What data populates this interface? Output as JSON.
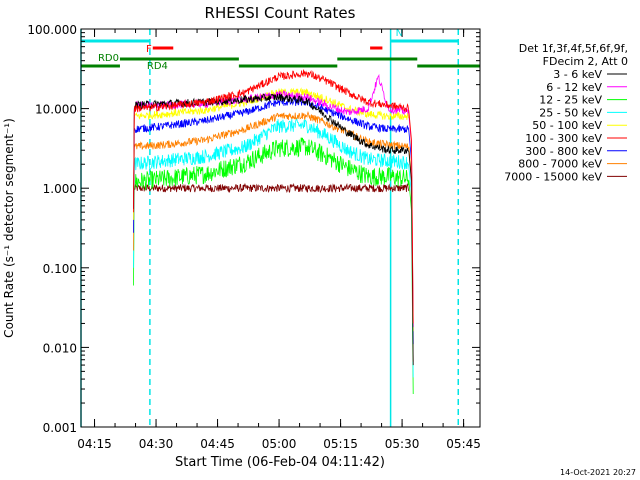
{
  "chart_data": {
    "type": "line",
    "title": "RHESSI Count Rates",
    "xlabel": "Start Time (06-Feb-04 04:11:42)",
    "ylabel": "Count Rate (s⁻¹ detector segment⁻¹)",
    "yscale": "log",
    "ylim": [
      0.001,
      100
    ],
    "xlim_minutes_after_0411_42": [
      0,
      97.3
    ],
    "x_ticks": [
      {
        "label": "04:15",
        "min": 3.3
      },
      {
        "label": "04:30",
        "min": 18.3
      },
      {
        "label": "04:45",
        "min": 33.3
      },
      {
        "label": "05:00",
        "min": 48.3
      },
      {
        "label": "05:15",
        "min": 63.3
      },
      {
        "label": "05:30",
        "min": 78.3
      },
      {
        "label": "05:45",
        "min": 93.3
      }
    ],
    "y_ticks": [
      {
        "label": "100.000",
        "v": 100
      },
      {
        "label": "10.000",
        "v": 10
      },
      {
        "label": "1.000",
        "v": 1
      },
      {
        "label": "0.100",
        "v": 0.1
      },
      {
        "label": "0.010",
        "v": 0.01
      },
      {
        "label": "0.001",
        "v": 0.001
      }
    ],
    "legend": {
      "header": [
        "Det 1f,3f,4f,5f,6f,9f,",
        "FDecim 2, Att 0"
      ],
      "placement": "right"
    },
    "series": [
      {
        "name": "3 - 6 keV",
        "color": "#000000",
        "x_min": [
          13,
          20,
          30,
          40,
          48,
          55,
          60,
          65,
          70,
          75,
          80
        ],
        "values": [
          11,
          11.5,
          12,
          13,
          14,
          12.5,
          8,
          5,
          3.5,
          3,
          3
        ]
      },
      {
        "name": "6 - 12 keV",
        "color": "#ff00ff",
        "x_min": [
          13,
          20,
          30,
          40,
          48,
          55,
          60,
          65,
          70,
          72.5,
          75,
          80
        ],
        "values": [
          11,
          11,
          11.5,
          13,
          15,
          14,
          11,
          9,
          10,
          25,
          10,
          9
        ]
      },
      {
        "name": "12 - 25 keV",
        "color": "#00ff00",
        "x_min": [
          13,
          20,
          30,
          40,
          48,
          55,
          60,
          65,
          70,
          75,
          80
        ],
        "values": [
          1.2,
          1.3,
          1.5,
          2.1,
          3.2,
          3.3,
          2.5,
          1.8,
          1.4,
          1.4,
          1.3
        ]
      },
      {
        "name": "25 - 50 keV",
        "color": "#00ffff",
        "x_min": [
          13,
          20,
          30,
          40,
          48,
          55,
          60,
          65,
          70,
          75,
          80
        ],
        "values": [
          2,
          2.2,
          2.5,
          3.3,
          6,
          6.2,
          4.5,
          3,
          2.3,
          2.2,
          2.1
        ]
      },
      {
        "name": "50 - 100 keV",
        "color": "#ffff00",
        "x_min": [
          13,
          20,
          30,
          40,
          48,
          55,
          60,
          65,
          70,
          75,
          80
        ],
        "values": [
          8,
          8.5,
          9.5,
          12,
          16,
          16,
          13,
          10,
          8.5,
          8,
          8
        ]
      },
      {
        "name": "100 - 300 keV",
        "color": "#ff0000",
        "x_min": [
          13,
          20,
          30,
          40,
          48,
          55,
          60,
          65,
          70,
          75,
          80
        ],
        "values": [
          10,
          10.5,
          12,
          16,
          25,
          28,
          22,
          16,
          12,
          11,
          10
        ]
      },
      {
        "name": "300 - 800 keV",
        "color": "#0000ff",
        "x_min": [
          13,
          20,
          30,
          40,
          48,
          55,
          60,
          65,
          70,
          75,
          80
        ],
        "values": [
          5.5,
          6,
          7,
          9,
          12,
          12,
          9.5,
          7.5,
          6,
          5.5,
          5.5
        ]
      },
      {
        "name": "800 - 7000 keV",
        "color": "#ff8000",
        "x_min": [
          13,
          20,
          30,
          40,
          48,
          55,
          60,
          65,
          70,
          75,
          80
        ],
        "values": [
          3.3,
          3.5,
          4,
          5.5,
          8,
          8.2,
          6.5,
          5,
          3.8,
          3.5,
          3.3
        ]
      },
      {
        "name": "7000 - 15000 keV",
        "color": "#800000",
        "x_min": [
          13,
          80
        ],
        "values": [
          1,
          1
        ]
      }
    ],
    "attenuator_bars": [
      {
        "label": "",
        "color": "#00e6e6",
        "x_min": [
          0,
          16.8
        ],
        "y_row": 1
      },
      {
        "label": "N",
        "color": "#00e6e6",
        "x_min": [
          75.5,
          92
        ],
        "y_row": 1
      },
      {
        "label": "F",
        "color": "#ff0000",
        "x_min": [
          17.5,
          22.5
        ],
        "y_row": 2
      },
      {
        "label": "",
        "color": "#ff0000",
        "x_min": [
          70.5,
          73.5
        ],
        "y_row": 2
      },
      {
        "label": "RD0",
        "color": "#008000",
        "x_min": [
          9.5,
          38.5
        ],
        "y_row": 3
      },
      {
        "label": "",
        "color": "#008000",
        "x_min": [
          62.5,
          82
        ],
        "y_row": 3
      },
      {
        "label": "",
        "color": "#008000",
        "x_min": [
          0,
          9.5
        ],
        "y_row": 4
      },
      {
        "label": "RD4",
        "color": "#008000",
        "x_min": [
          38.5,
          62.5
        ],
        "y_row": 4
      },
      {
        "label": "",
        "color": "#008000",
        "x_min": [
          82,
          97.3
        ],
        "y_row": 4
      }
    ],
    "vertical_lines": [
      {
        "color": "#00e6e6",
        "style": "solid",
        "x_min": 0
      },
      {
        "color": "#00e6e6",
        "style": "dashed",
        "x_min": 16.8
      },
      {
        "color": "#00e6e6",
        "style": "solid",
        "x_min": 75.5
      },
      {
        "color": "#00e6e6",
        "style": "dashed",
        "x_min": 92
      }
    ],
    "grid": false
  },
  "footer_timestamp": "14-Oct-2021 20:27"
}
